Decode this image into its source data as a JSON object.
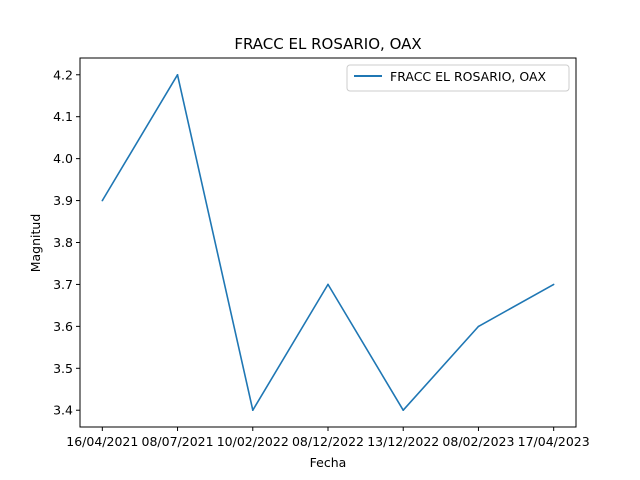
{
  "chart_data": {
    "type": "line",
    "title": "FRACC EL ROSARIO, OAX",
    "xlabel": "Fecha",
    "ylabel": "Magnitud",
    "categories": [
      "16/04/2021",
      "08/07/2021",
      "10/02/2022",
      "08/12/2022",
      "13/12/2022",
      "08/02/2023",
      "17/04/2023"
    ],
    "series": [
      {
        "name": "FRACC EL ROSARIO, OAX",
        "values": [
          3.9,
          4.2,
          3.4,
          3.7,
          3.4,
          3.6,
          3.7
        ],
        "color": "#1f77b4"
      }
    ],
    "yticks": [
      "3.4",
      "3.5",
      "3.6",
      "3.7",
      "3.8",
      "3.9",
      "4.0",
      "4.1",
      "4.2"
    ],
    "ylim": [
      3.36,
      4.24
    ],
    "grid": false,
    "legend": "top-right"
  }
}
